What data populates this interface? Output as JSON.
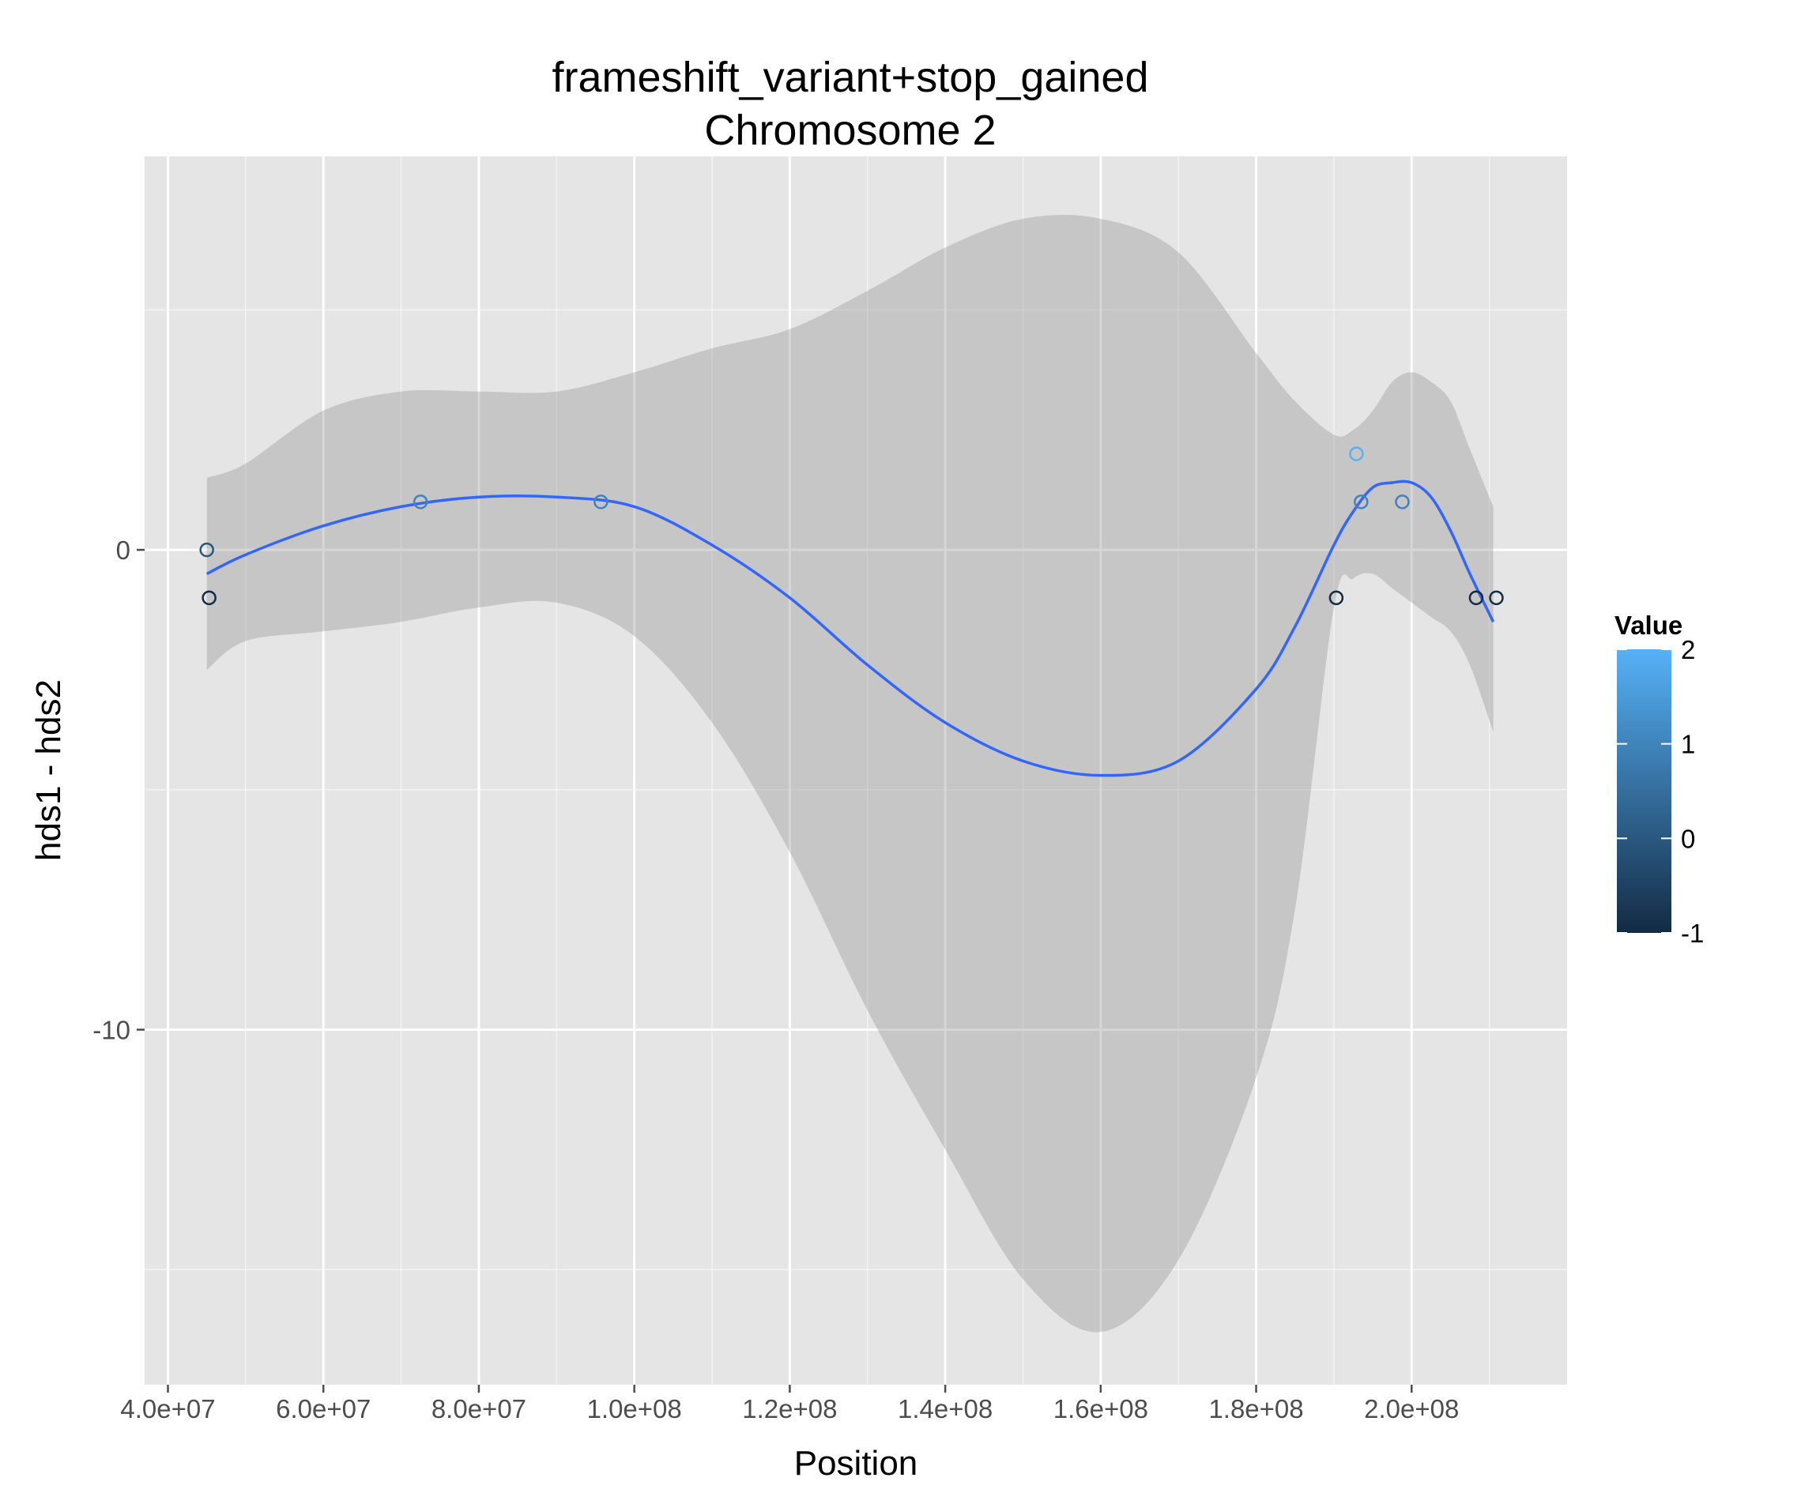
{
  "chart_data": {
    "type": "scatter",
    "title": "frameshift_variant+stop_gained",
    "subtitle": "Chromosome 2",
    "xlabel": "Position",
    "ylabel": "hds1 - hds2",
    "xlim": [
      37000000,
      220000000
    ],
    "ylim": [
      -17.4,
      8.2
    ],
    "x_ticks": [
      40000000,
      60000000,
      80000000,
      100000000,
      120000000,
      140000000,
      160000000,
      180000000,
      200000000
    ],
    "x_tick_labels": [
      "4.0e+07",
      "6.0e+07",
      "8.0e+07",
      "1.0e+08",
      "1.2e+08",
      "1.4e+08",
      "1.6e+08",
      "1.8e+08",
      "2.0e+08"
    ],
    "y_ticks": [
      0,
      -10
    ],
    "y_tick_labels": [
      "0",
      "-10"
    ],
    "grid": true,
    "points": [
      {
        "x": 45000000,
        "y": 0,
        "value": 0
      },
      {
        "x": 45300000,
        "y": -1,
        "value": -1
      },
      {
        "x": 72500000,
        "y": 1,
        "value": 1
      },
      {
        "x": 95700000,
        "y": 1,
        "value": 1
      },
      {
        "x": 190300000,
        "y": -1,
        "value": -1
      },
      {
        "x": 192900000,
        "y": 2,
        "value": 2
      },
      {
        "x": 193500000,
        "y": 1,
        "value": 1
      },
      {
        "x": 198800000,
        "y": 1,
        "value": 1
      },
      {
        "x": 208300000,
        "y": -1,
        "value": -1
      },
      {
        "x": 210900000,
        "y": -1,
        "value": -1
      }
    ],
    "smooth": {
      "x": [
        45000000,
        50000000,
        60000000,
        70000000,
        80000000,
        90000000,
        100000000,
        110000000,
        120000000,
        130000000,
        140000000,
        150000000,
        160000000,
        170000000,
        180000000,
        185000000,
        190000000,
        192500000,
        195000000,
        197500000,
        200000000,
        202500000,
        205000000,
        207500000,
        210500000
      ],
      "y": [
        -0.5,
        -0.1,
        0.5,
        0.9,
        1.1,
        1.1,
        0.9,
        0.1,
        -1.0,
        -2.4,
        -3.6,
        -4.4,
        -4.7,
        -4.4,
        -2.9,
        -1.6,
        0.1,
        0.8,
        1.3,
        1.4,
        1.4,
        1.1,
        0.4,
        -0.5,
        -1.5
      ],
      "lower": [
        -2.5,
        -1.9,
        -1.7,
        -1.5,
        -1.2,
        -1.1,
        -1.8,
        -3.6,
        -6.3,
        -9.6,
        -12.5,
        -15.2,
        -16.3,
        -14.8,
        -11.0,
        -7.5,
        -1.2,
        -0.6,
        -0.5,
        -0.8,
        -1.1,
        -1.4,
        -1.7,
        -2.4,
        -3.8
      ],
      "upper": [
        1.5,
        1.8,
        2.9,
        3.3,
        3.3,
        3.3,
        3.7,
        4.2,
        4.6,
        5.4,
        6.3,
        6.9,
        6.9,
        6.2,
        4.1,
        3.1,
        2.4,
        2.5,
        2.9,
        3.5,
        3.7,
        3.5,
        3.1,
        2.1,
        0.9
      ],
      "line_color": "#3366ff",
      "band_color": "#999999"
    },
    "legend": {
      "title": "Value",
      "min": -1,
      "max": 2,
      "ticks": [
        2,
        1,
        0,
        -1
      ],
      "tick_labels": [
        "2",
        "1",
        "0",
        "-1"
      ],
      "low_color": "#132b43",
      "high_color": "#56b1f7",
      "position": "right"
    },
    "panel_background": "#e5e5e5",
    "grid_color": "#ffffff"
  }
}
